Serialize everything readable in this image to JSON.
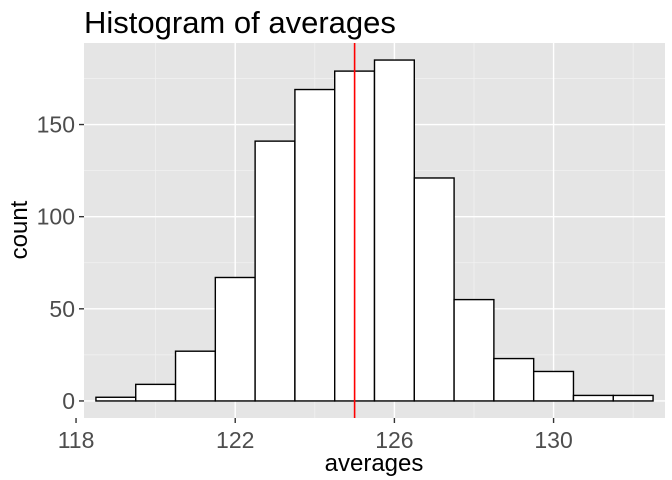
{
  "chart_data": {
    "type": "bar",
    "title": "Histogram of averages",
    "xlabel": "averages",
    "ylabel": "count",
    "bin_width": 1,
    "bins": [
      {
        "center": 119,
        "count": 2
      },
      {
        "center": 120,
        "count": 9
      },
      {
        "center": 121,
        "count": 27
      },
      {
        "center": 122,
        "count": 67
      },
      {
        "center": 123,
        "count": 141
      },
      {
        "center": 124,
        "count": 169
      },
      {
        "center": 125,
        "count": 179
      },
      {
        "center": 126,
        "count": 185
      },
      {
        "center": 127,
        "count": 121
      },
      {
        "center": 128,
        "count": 55
      },
      {
        "center": 129,
        "count": 23
      },
      {
        "center": 130,
        "count": 16
      },
      {
        "center": 131,
        "count": 3
      },
      {
        "center": 132,
        "count": 3
      }
    ],
    "xlim": [
      118.2,
      132.8
    ],
    "ylim": [
      -9.25,
      194.25
    ],
    "x_ticks": [
      118,
      122,
      126,
      130
    ],
    "x_tick_labels": [
      "118",
      "122",
      "126",
      "130"
    ],
    "y_ticks": [
      0,
      50,
      100,
      150
    ],
    "y_tick_labels": [
      "0",
      "50",
      "100",
      "150"
    ],
    "reference_line": {
      "x": 125,
      "color": "#ff0000"
    },
    "panel_background": "#e5e5e5",
    "bar_fill": "#ffffff",
    "bar_outline": "#000000",
    "grid": true
  }
}
